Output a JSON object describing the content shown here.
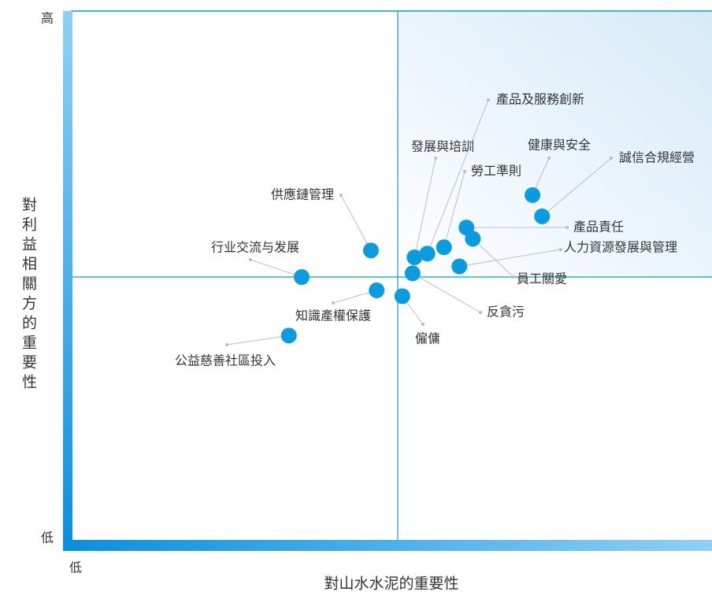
{
  "chart_data": {
    "type": "scatter",
    "x_label": "對山水水泥的重要性",
    "y_label": "對利益相關方的重要性",
    "labels": [
      "供應鏈管理",
      "行业交流与发展",
      "知識產權保護",
      "公益慈善社區投入",
      "僱傭",
      "反貪污",
      "發展與培訓",
      "產品及服務創新",
      "勞工準則",
      "產品責任",
      "員工關愛",
      "人力資源發展與管理",
      "健康與安全",
      "誠信合規經營"
    ],
    "x": [
      46.8,
      36.0,
      47.7,
      34.0,
      51.7,
      53.3,
      53.6,
      55.6,
      58.2,
      61.7,
      62.7,
      60.6,
      72.0,
      73.5
    ],
    "values": [
      55.0,
      50.0,
      47.5,
      39.0,
      46.4,
      50.7,
      53.7,
      54.4,
      55.6,
      59.3,
      57.2,
      52.0,
      65.4,
      61.4
    ],
    "color": "#0a9be0",
    "xlim": [
      0,
      100
    ],
    "ylim": [
      0,
      100
    ],
    "xticks": [
      {
        "value": 0,
        "label": "低"
      }
    ],
    "yticks": [
      {
        "value": 0,
        "label": "低"
      },
      {
        "value": 100,
        "label": "高"
      }
    ]
  }
}
